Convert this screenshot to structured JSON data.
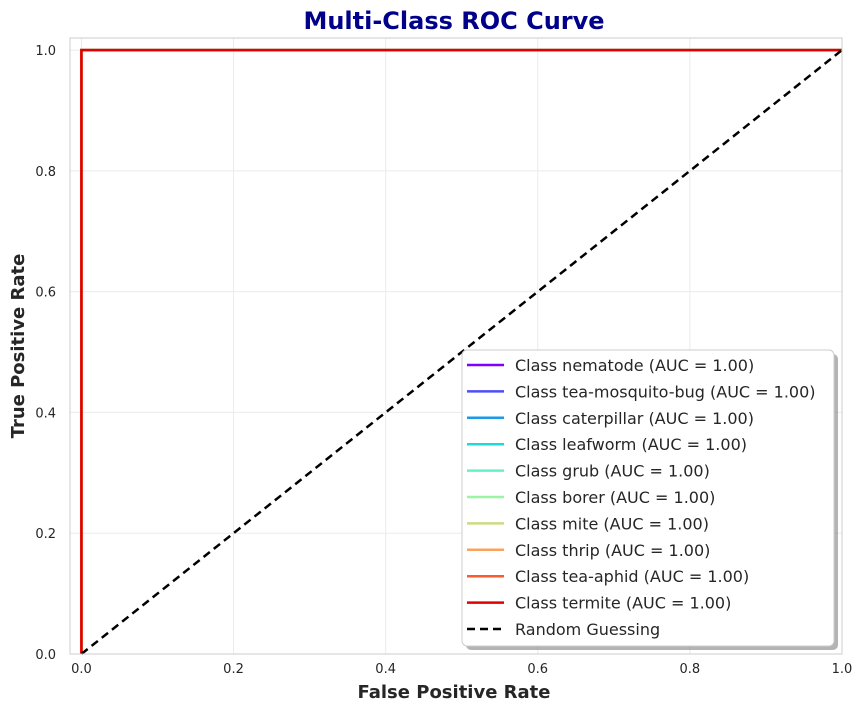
{
  "chart_data": {
    "type": "line",
    "title": "Multi-Class ROC Curve",
    "xlabel": "False Positive Rate",
    "ylabel": "True Positive Rate",
    "xlim": [
      -0.015,
      1.0
    ],
    "ylim": [
      0.0,
      1.02
    ],
    "xticks": [
      0.0,
      0.2,
      0.4,
      0.6,
      0.8,
      1.0
    ],
    "yticks": [
      0.0,
      0.2,
      0.4,
      0.6,
      0.8,
      1.0
    ],
    "xtick_labels": [
      "0.0",
      "0.2",
      "0.4",
      "0.6",
      "0.8",
      "1.0"
    ],
    "ytick_labels": [
      "0.0",
      "0.2",
      "0.4",
      "0.6",
      "0.8",
      "1.0"
    ],
    "grid": true,
    "legend_position": "lower-right",
    "series": [
      {
        "name": "Class nematode (AUC = 1.00)",
        "color": "#7f00ff",
        "x": [
          0.0,
          0.0,
          1.0
        ],
        "y": [
          0.0,
          1.0,
          1.0
        ]
      },
      {
        "name": "Class tea-mosquito-bug (AUC = 1.00)",
        "color": "#4d4dfc",
        "x": [
          0.0,
          0.0,
          1.0
        ],
        "y": [
          0.0,
          1.0,
          1.0
        ]
      },
      {
        "name": "Class caterpillar (AUC = 1.00)",
        "color": "#1a9ae9",
        "x": [
          0.0,
          0.0,
          1.0
        ],
        "y": [
          0.0,
          1.0,
          1.0
        ]
      },
      {
        "name": "Class leafworm (AUC = 1.00)",
        "color": "#1adbd9",
        "x": [
          0.0,
          0.0,
          1.0
        ],
        "y": [
          0.0,
          1.0,
          1.0
        ]
      },
      {
        "name": "Class grub (AUC = 1.00)",
        "color": "#66f2c8",
        "x": [
          0.0,
          0.0,
          1.0
        ],
        "y": [
          0.0,
          1.0,
          1.0
        ]
      },
      {
        "name": "Class borer (AUC = 1.00)",
        "color": "#9cf5a2",
        "x": [
          0.0,
          0.0,
          1.0
        ],
        "y": [
          0.0,
          1.0,
          1.0
        ]
      },
      {
        "name": "Class mite (AUC = 1.00)",
        "color": "#cbdb7f",
        "x": [
          0.0,
          0.0,
          1.0
        ],
        "y": [
          0.0,
          1.0,
          1.0
        ]
      },
      {
        "name": "Class thrip (AUC = 1.00)",
        "color": "#fba35e",
        "x": [
          0.0,
          0.0,
          1.0
        ],
        "y": [
          0.0,
          1.0,
          1.0
        ]
      },
      {
        "name": "Class tea-aphid (AUC = 1.00)",
        "color": "#ff5a2e",
        "x": [
          0.0,
          0.0,
          1.0
        ],
        "y": [
          0.0,
          1.0,
          1.0
        ]
      },
      {
        "name": "Class termite (AUC = 1.00)",
        "color": "#e00000",
        "x": [
          0.0,
          0.0,
          1.0
        ],
        "y": [
          0.0,
          1.0,
          1.0
        ]
      },
      {
        "name": "Random Guessing",
        "color": "#000000",
        "dashed": true,
        "x": [
          0.0,
          1.0
        ],
        "y": [
          0.0,
          1.0
        ]
      }
    ]
  }
}
